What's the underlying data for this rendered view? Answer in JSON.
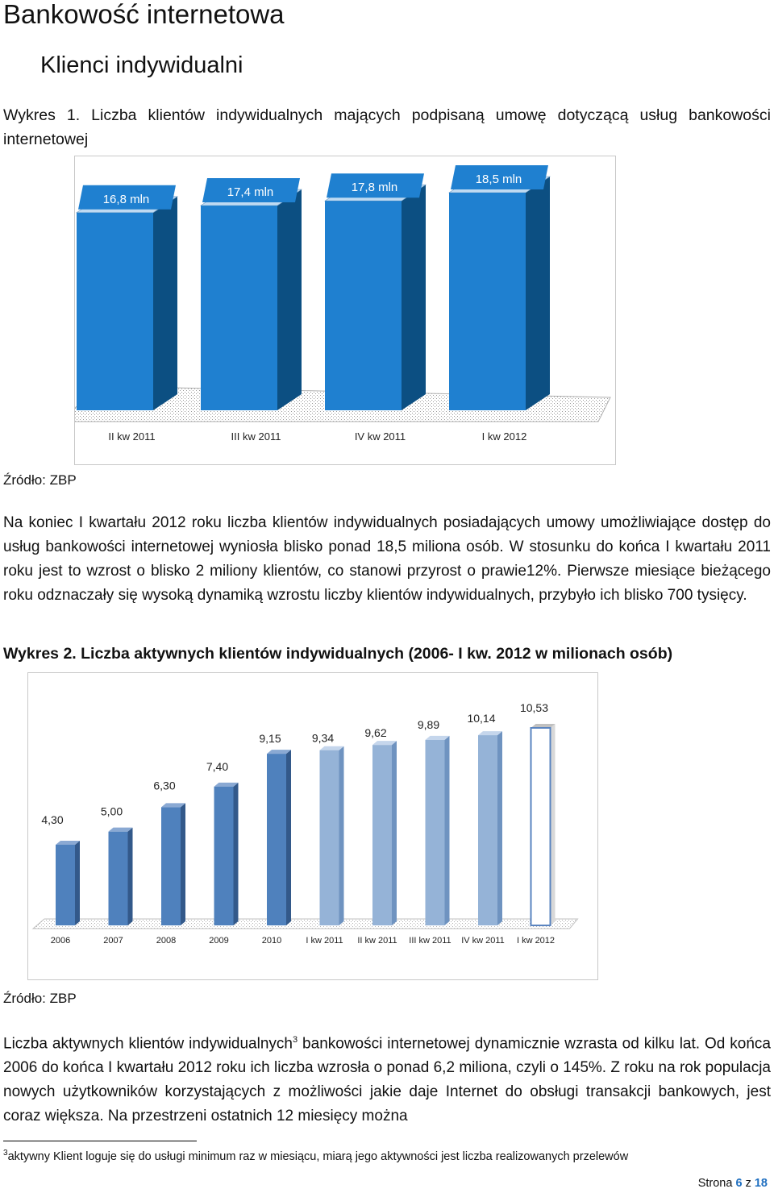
{
  "header": {
    "title": "Bankowość internetowa",
    "subtitle": "Klienci indywidualni"
  },
  "chart1": {
    "caption": "Wykres  1.  Liczba  klientów  indywidualnych  mających  podpisaną  umowę  dotyczącą  usług bankowości internetowej",
    "source": "Źródło: ZBP"
  },
  "paragraph1": "Na koniec I kwartału 2012 roku liczba klientów indywidualnych posiadających umowy umożliwiające dostęp do usług bankowości internetowej wyniosła blisko ponad 18,5 miliona osób. W stosunku do końca I kwartału 2011 roku jest to wzrost o blisko 2 miliony klientów, co stanowi przyrost o prawie12%. Pierwsze miesiące bieżącego roku odznaczały się wysoką dynamiką wzrostu liczby klientów indywidualnych, przybyło ich blisko 700 tysięcy.",
  "chart2": {
    "caption": "Wykres 2. Liczba aktywnych klientów indywidualnych (2006- I kw. 2012 w milionach osób)",
    "source": "Źródło: ZBP"
  },
  "paragraph2": {
    "before_sup": "Liczba aktywnych klientów indywidualnych",
    "sup": "3",
    "after_sup": " bankowości internetowej dynamicznie wzrasta od kilku lat. Od końca 2006 do końca I kwartału 2012 roku ich liczba wzrosła o ponad 6,2 miliona, czyli o 145%. Z roku na rok populacja nowych użytkowników korzystających z możliwości jakie daje Internet do obsługi transakcji bankowych, jest coraz większa. Na przestrzeni ostatnich 12 miesięcy można"
  },
  "footnote": {
    "sup": "3",
    "text": "aktywny Klient loguje się do usługi minimum raz w miesiącu, miarą jego aktywności jest liczba realizowanych przelewów"
  },
  "page_number": {
    "prefix": "Strona ",
    "current": "6",
    "middle": " z ",
    "total": "18"
  },
  "colors": {
    "chart1_front": "#1f80d0",
    "chart1_side": "#0c4f82",
    "chart2_bar": "#4f81bd",
    "chart2_bar_light": "#95b3d7",
    "page_accent": "#1f6fc0"
  },
  "chart_data": [
    {
      "type": "bar",
      "categories": [
        "II kw 2011",
        "III kw 2011",
        "IV kw 2011",
        "I kw 2012"
      ],
      "values": [
        16.8,
        17.4,
        17.8,
        18.5
      ],
      "data_labels": [
        "16,8 mln",
        "17,4 mln",
        "17,8 mln",
        "18,5 mln"
      ],
      "title": "",
      "xlabel": "",
      "ylabel": "",
      "ylim": [
        0,
        18.5
      ],
      "grid": false,
      "style": "3d"
    },
    {
      "type": "bar",
      "categories": [
        "2006",
        "2007",
        "2008",
        "2009",
        "2010",
        "I kw 2011",
        "II kw 2011",
        "III kw 2011",
        "IV kw 2011",
        "I kw 2012"
      ],
      "values": [
        4.3,
        5.0,
        6.3,
        7.4,
        9.15,
        9.34,
        9.62,
        9.89,
        10.14,
        10.53
      ],
      "data_labels": [
        "4,30",
        "5,00",
        "6,30",
        "7,40",
        "9,15",
        "9,34",
        "9,62",
        "9,89",
        "10,14",
        "10,53"
      ],
      "title": "",
      "xlabel": "",
      "ylabel": "",
      "ylim": [
        0,
        10.53
      ],
      "grid": false,
      "style": "3d"
    }
  ]
}
